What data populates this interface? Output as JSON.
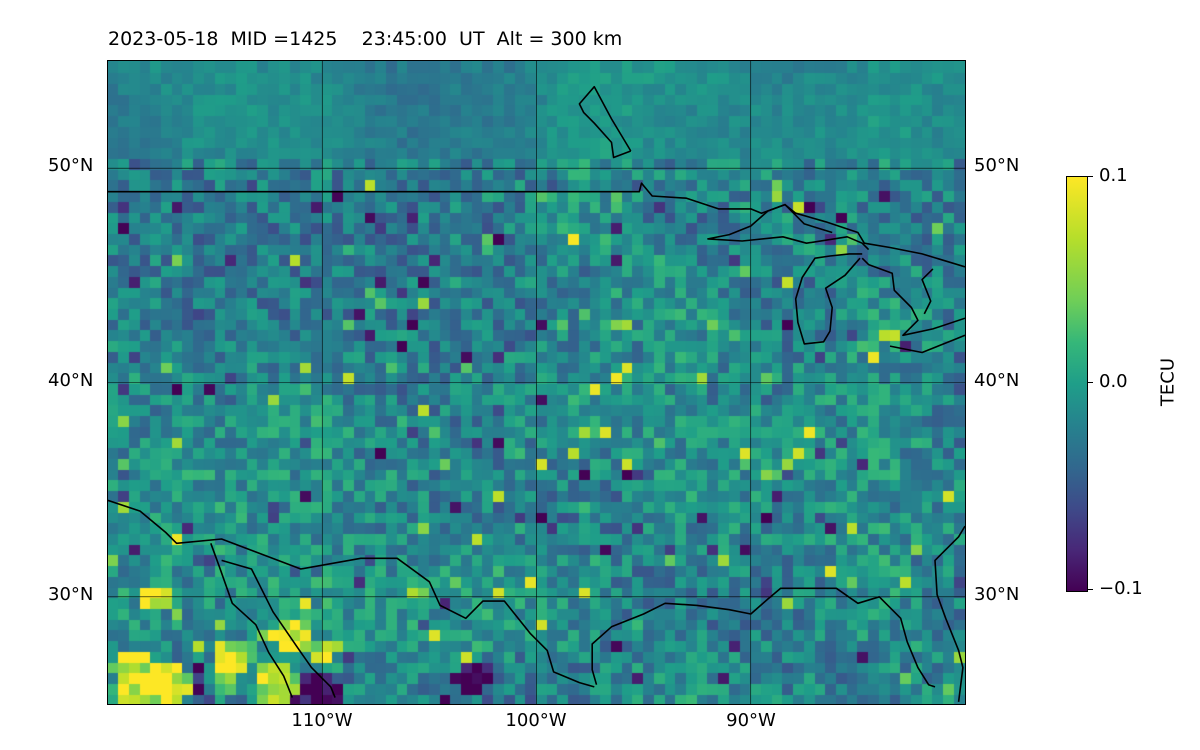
{
  "title": {
    "date": "2023-05-18",
    "mid": "MID =1425",
    "time": "23:45:00  UT",
    "alt": "Alt = 300 km"
  },
  "map": {
    "projection": "equirectangular",
    "lon_range": [
      -120,
      -80
    ],
    "lat_range": [
      25,
      55
    ],
    "gridlines": {
      "lons": [
        -110,
        -100,
        -90
      ],
      "lats": [
        30,
        40,
        50
      ]
    },
    "lat_labels": [
      "50°N",
      "40°N",
      "30°N"
    ],
    "lon_labels": [
      "110°W",
      "100°W",
      "90°W"
    ],
    "field": "differential TEC, blocky noisy field, mostly near 0 with hotspots",
    "grid_resolution_deg": 0.5,
    "hotspots_high": [
      [
        -119,
        26,
        1.3
      ],
      [
        -117.4,
        25.8,
        1.2
      ],
      [
        -115,
        26,
        1.0
      ],
      [
        -112.4,
        25.8,
        1.0
      ],
      [
        -111.7,
        28,
        0.9
      ],
      [
        -114.5,
        27,
        0.9
      ],
      [
        -118.0,
        29.8,
        0.6
      ],
      [
        -110.2,
        27.2,
        0.7
      ]
    ],
    "hotspots_low": [
      [
        -115.5,
        25.8,
        0.9
      ],
      [
        -110.3,
        25.3,
        1.0
      ],
      [
        -103.2,
        26.1,
        0.9
      ],
      [
        -102,
        37,
        0.4
      ],
      [
        -100.5,
        42,
        0.4
      ]
    ]
  },
  "colorbar": {
    "label": "TECU",
    "ticks": [
      "0.1",
      "0.0",
      "−0.1"
    ],
    "range": [
      -0.1,
      0.1
    ],
    "colors": [
      "#440154",
      "#3e4a89",
      "#26828e",
      "#35b779",
      "#fde725"
    ]
  },
  "coastlines": [
    [
      [
        -120,
        48.9
      ],
      [
        -115,
        48.9
      ],
      [
        -110,
        48.9
      ],
      [
        -105,
        48.9
      ],
      [
        -100,
        48.9
      ],
      [
        -95.2,
        48.9
      ],
      [
        -95.1,
        49.3
      ],
      [
        -94.6,
        48.7
      ],
      [
        -93,
        48.6
      ],
      [
        -91.5,
        48.1
      ],
      [
        -90,
        48.1
      ],
      [
        -89.5,
        47.9
      ],
      [
        -88.4,
        48.3
      ],
      [
        -87.9,
        47.9
      ],
      [
        -86.5,
        47.5
      ],
      [
        -85,
        47.0
      ],
      [
        -84.7,
        46.5
      ],
      [
        -83.5,
        46.3
      ],
      [
        -82,
        46.0
      ],
      [
        -80,
        45.4
      ]
    ],
    [
      [
        -86.2,
        47.0
      ],
      [
        -87.5,
        47.4
      ],
      [
        -88.4,
        48.3
      ],
      [
        -89.2,
        48.0
      ],
      [
        -90,
        47.3
      ],
      [
        -91,
        46.9
      ],
      [
        -92,
        46.7
      ],
      [
        -90.4,
        46.6
      ],
      [
        -88.5,
        46.8
      ],
      [
        -87.4,
        46.5
      ],
      [
        -85.5,
        46.8
      ],
      [
        -84.8,
        46.5
      ],
      [
        -84.5,
        46.2
      ]
    ],
    [
      [
        -84.8,
        46.0
      ],
      [
        -85.4,
        46.0
      ],
      [
        -86.3,
        45.9
      ],
      [
        -87.0,
        45.8
      ],
      [
        -87.6,
        44.9
      ],
      [
        -87.9,
        43.9
      ],
      [
        -87.8,
        42.8
      ],
      [
        -87.5,
        41.8
      ],
      [
        -86.6,
        41.9
      ],
      [
        -86.3,
        42.4
      ],
      [
        -86.2,
        43.5
      ],
      [
        -86.5,
        44.4
      ],
      [
        -85.6,
        45.0
      ],
      [
        -84.9,
        45.8
      ]
    ],
    [
      [
        -84.8,
        45.8
      ],
      [
        -84.5,
        45.5
      ],
      [
        -83.4,
        45.1
      ],
      [
        -83.3,
        44.3
      ],
      [
        -82.5,
        43.5
      ],
      [
        -82.2,
        42.9
      ],
      [
        -82.5,
        42.6
      ],
      [
        -82.9,
        42.2
      ],
      [
        -81.5,
        42.5
      ],
      [
        -80,
        43.0
      ]
    ],
    [
      [
        -83.5,
        41.7
      ],
      [
        -82,
        41.4
      ],
      [
        -80.5,
        42.0
      ],
      [
        -80,
        42.2
      ]
    ],
    [
      [
        -81.5,
        45.3
      ],
      [
        -82.0,
        44.8
      ],
      [
        -81.6,
        43.8
      ],
      [
        -81.9,
        43.2
      ]
    ],
    [
      [
        -95.6,
        50.8
      ],
      [
        -96.4,
        50.5
      ],
      [
        -96.5,
        51.2
      ],
      [
        -97.3,
        52.1
      ],
      [
        -97.8,
        52.6
      ],
      [
        -98.0,
        53.0
      ],
      [
        -97.3,
        53.8
      ],
      [
        -96.5,
        52.3
      ],
      [
        -95.6,
        50.8
      ]
    ],
    [
      [
        -120,
        34.5
      ],
      [
        -118.5,
        34.0
      ],
      [
        -117.3,
        33.0
      ],
      [
        -116.8,
        32.5
      ],
      [
        -114.7,
        32.7
      ],
      [
        -111,
        31.3
      ],
      [
        -108.2,
        31.8
      ],
      [
        -106.5,
        31.8
      ],
      [
        -105,
        30.7
      ],
      [
        -104.5,
        29.6
      ],
      [
        -103.3,
        29.0
      ],
      [
        -102.5,
        29.8
      ],
      [
        -101.5,
        29.8
      ],
      [
        -100.3,
        28.3
      ],
      [
        -99.5,
        27.5
      ],
      [
        -99.2,
        26.5
      ],
      [
        -98,
        26.0
      ],
      [
        -97.3,
        25.8
      ]
    ],
    [
      [
        -97.2,
        25.9
      ],
      [
        -97.4,
        26.6
      ],
      [
        -97.4,
        27.8
      ],
      [
        -96.5,
        28.6
      ],
      [
        -95,
        29.2
      ],
      [
        -94,
        29.7
      ],
      [
        -92.5,
        29.6
      ],
      [
        -91,
        29.4
      ],
      [
        -90,
        29.2
      ],
      [
        -89.2,
        29.9
      ],
      [
        -88.6,
        30.4
      ],
      [
        -87,
        30.4
      ],
      [
        -86,
        30.4
      ],
      [
        -85,
        29.7
      ],
      [
        -84,
        30.0
      ],
      [
        -83,
        29.0
      ],
      [
        -82.7,
        27.9
      ],
      [
        -82.2,
        26.7
      ],
      [
        -81.7,
        25.9
      ],
      [
        -81.4,
        25.8
      ]
    ],
    [
      [
        -80.3,
        25.1
      ],
      [
        -80.1,
        26.7
      ],
      [
        -80.3,
        27.5
      ],
      [
        -80.9,
        29.0
      ],
      [
        -81.3,
        30.1
      ],
      [
        -81.4,
        31.7
      ],
      [
        -80.3,
        32.8
      ],
      [
        -80,
        33.3
      ]
    ],
    [
      [
        -114.7,
        31.7
      ],
      [
        -113.3,
        31.3
      ],
      [
        -112.3,
        29.3
      ],
      [
        -111.2,
        27.7
      ],
      [
        -110.5,
        26.7
      ],
      [
        -109.6,
        25.8
      ],
      [
        -109.4,
        25.3
      ]
    ],
    [
      [
        -115.2,
        32.5
      ],
      [
        -114.8,
        31.4
      ],
      [
        -114.2,
        29.7
      ],
      [
        -113.1,
        28.7
      ],
      [
        -112.5,
        27.4
      ],
      [
        -111.8,
        26.3
      ],
      [
        -111.4,
        25.3
      ]
    ]
  ]
}
